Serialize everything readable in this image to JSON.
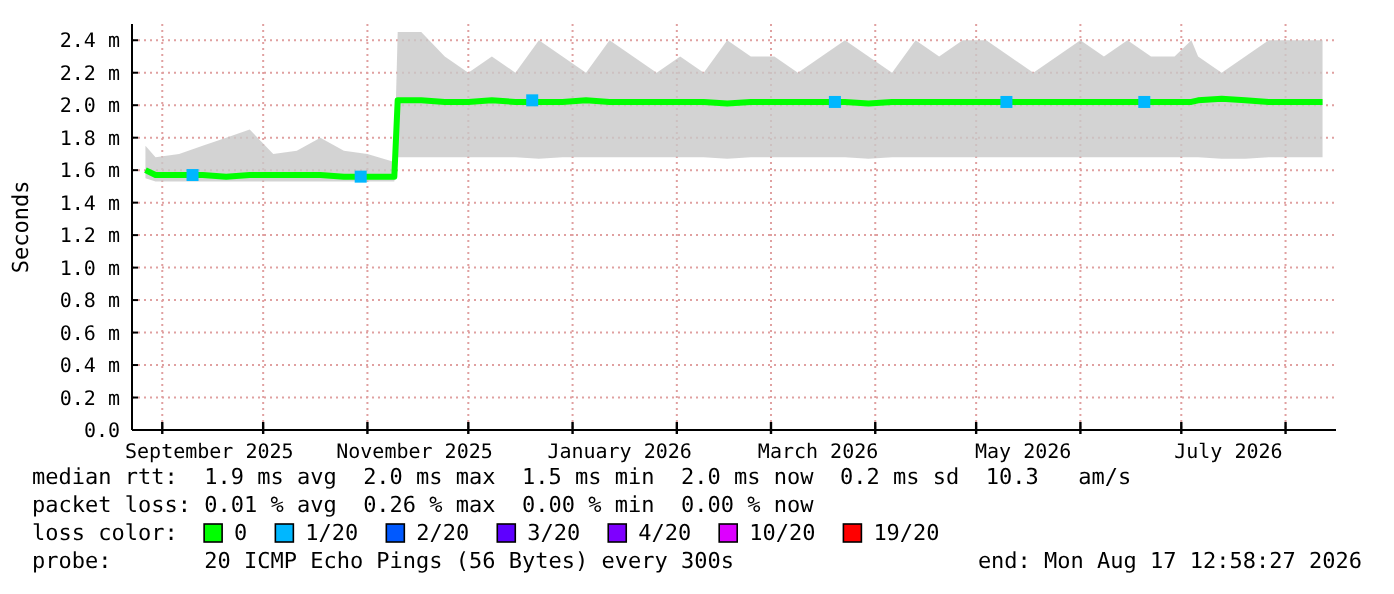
{
  "chart_data": {
    "type": "line",
    "ylabel": "Seconds",
    "legend_title": "loss color:",
    "legend": "bottom",
    "grid": true,
    "xlim": [
      "2025-08-23",
      "2026-08-16"
    ],
    "xticks": [
      {
        "value": "2025-09-01",
        "label": null
      },
      {
        "value": "2025-09-15",
        "label": "September 2025"
      },
      {
        "value": "2025-10-01",
        "label": null
      },
      {
        "value": "2025-11-01",
        "label": null
      },
      {
        "value": "2025-11-15",
        "label": "November 2025"
      },
      {
        "value": "2025-12-01",
        "label": null
      },
      {
        "value": "2026-01-01",
        "label": null
      },
      {
        "value": "2026-01-15",
        "label": "January 2026"
      },
      {
        "value": "2026-02-01",
        "label": null
      },
      {
        "value": "2026-03-01",
        "label": null
      },
      {
        "value": "2026-03-15",
        "label": "March 2026"
      },
      {
        "value": "2026-04-01",
        "label": null
      },
      {
        "value": "2026-05-01",
        "label": null
      },
      {
        "value": "2026-05-15",
        "label": "May 2026"
      },
      {
        "value": "2026-06-01",
        "label": null
      },
      {
        "value": "2026-07-01",
        "label": null
      },
      {
        "value": "2026-07-15",
        "label": "July 2026"
      },
      {
        "value": "2026-08-01",
        "label": null
      }
    ],
    "ylim": [
      0,
      2.5
    ],
    "yticks": [
      {
        "value": 0,
        "label": "0.0"
      },
      {
        "value": 0.2,
        "label": "0.2 m"
      },
      {
        "value": 0.4,
        "label": "0.4 m"
      },
      {
        "value": 0.6,
        "label": "0.6 m"
      },
      {
        "value": 0.8,
        "label": "0.8 m"
      },
      {
        "value": 1.0,
        "label": "1.0 m"
      },
      {
        "value": 1.2,
        "label": "1.2 m"
      },
      {
        "value": 1.4,
        "label": "1.4 m"
      },
      {
        "value": 1.6,
        "label": "1.6 m"
      },
      {
        "value": 1.8,
        "label": "1.8 m"
      },
      {
        "value": 2.0,
        "label": "2.0 m"
      },
      {
        "value": 2.2,
        "label": "2.2 m"
      },
      {
        "value": 2.4,
        "label": "2.4 m"
      }
    ],
    "series": [
      {
        "name": "0",
        "color": "#00ff00",
        "x": [
          "2025-08-27",
          "2025-08-30",
          "2025-09-06",
          "2025-09-13",
          "2025-09-20",
          "2025-09-27",
          "2025-10-04",
          "2025-10-11",
          "2025-10-18",
          "2025-10-25",
          "2025-11-01",
          "2025-11-09",
          "2025-11-10",
          "2025-11-17",
          "2025-11-24",
          "2025-12-01",
          "2025-12-08",
          "2025-12-15",
          "2025-12-22",
          "2025-12-29",
          "2026-01-05",
          "2026-01-12",
          "2026-01-19",
          "2026-01-26",
          "2026-02-02",
          "2026-02-09",
          "2026-02-16",
          "2026-02-23",
          "2026-03-02",
          "2026-03-09",
          "2026-03-16",
          "2026-03-23",
          "2026-03-30",
          "2026-04-06",
          "2026-04-13",
          "2026-04-20",
          "2026-04-27",
          "2026-05-04",
          "2026-05-11",
          "2026-05-18",
          "2026-05-25",
          "2026-06-01",
          "2026-06-08",
          "2026-06-15",
          "2026-06-22",
          "2026-06-29",
          "2026-07-04",
          "2026-07-06",
          "2026-07-13",
          "2026-07-20",
          "2026-07-27",
          "2026-08-03",
          "2026-08-10",
          "2026-08-12"
        ],
        "values": [
          1.6,
          1.57,
          1.57,
          1.57,
          1.56,
          1.57,
          1.57,
          1.57,
          1.57,
          1.56,
          1.56,
          1.56,
          2.03,
          2.03,
          2.02,
          2.02,
          2.03,
          2.02,
          2.02,
          2.02,
          2.03,
          2.02,
          2.02,
          2.02,
          2.02,
          2.02,
          2.01,
          2.02,
          2.02,
          2.02,
          2.02,
          2.02,
          2.01,
          2.02,
          2.02,
          2.02,
          2.02,
          2.02,
          2.02,
          2.02,
          2.02,
          2.02,
          2.02,
          2.02,
          2.02,
          2.02,
          2.02,
          2.03,
          2.04,
          2.03,
          2.02,
          2.02,
          2.02,
          2.02
        ],
        "lower": [
          1.55,
          1.53,
          1.53,
          1.53,
          1.53,
          1.53,
          1.53,
          1.53,
          1.53,
          1.53,
          1.53,
          1.53,
          1.68,
          1.68,
          1.68,
          1.68,
          1.68,
          1.68,
          1.67,
          1.68,
          1.68,
          1.68,
          1.68,
          1.68,
          1.68,
          1.68,
          1.67,
          1.68,
          1.68,
          1.68,
          1.68,
          1.68,
          1.67,
          1.68,
          1.68,
          1.68,
          1.68,
          1.68,
          1.68,
          1.68,
          1.68,
          1.68,
          1.68,
          1.68,
          1.68,
          1.68,
          1.68,
          1.68,
          1.67,
          1.67,
          1.68,
          1.68,
          1.68,
          1.68
        ],
        "upper": [
          1.75,
          1.68,
          1.7,
          1.75,
          1.8,
          1.85,
          1.7,
          1.72,
          1.8,
          1.72,
          1.7,
          1.65,
          2.45,
          2.45,
          2.3,
          2.2,
          2.3,
          2.2,
          2.4,
          2.3,
          2.2,
          2.4,
          2.3,
          2.2,
          2.3,
          2.2,
          2.4,
          2.3,
          2.3,
          2.2,
          2.3,
          2.4,
          2.3,
          2.2,
          2.4,
          2.3,
          2.4,
          2.4,
          2.3,
          2.2,
          2.3,
          2.4,
          2.3,
          2.4,
          2.3,
          2.3,
          2.4,
          2.3,
          2.2,
          2.3,
          2.4,
          2.4,
          2.4,
          2.4
        ]
      },
      {
        "name": "1/20",
        "color": "#00b7ff",
        "type": "scatter",
        "marker": "square",
        "x": [
          "2025-09-10",
          "2025-10-30",
          "2025-12-20",
          "2026-03-20",
          "2026-05-10",
          "2026-06-20"
        ],
        "values": [
          1.57,
          1.56,
          2.03,
          2.02,
          2.02,
          2.02
        ]
      },
      {
        "name": "2/20",
        "color": "#0059ff",
        "type": "scatter",
        "marker": "square"
      },
      {
        "name": "3/20",
        "color": "#5e00ff",
        "type": "scatter",
        "marker": "square"
      },
      {
        "name": "4/20",
        "color": "#7e00ff",
        "type": "scatter",
        "marker": "square"
      },
      {
        "name": "10/20",
        "color": "#dd00ff",
        "type": "scatter",
        "marker": "square"
      },
      {
        "name": "19/20",
        "color": "#ff0000",
        "type": "scatter",
        "marker": "square"
      }
    ],
    "annotations": [
      "median rtt:  1.9 ms avg  2.0 ms max  1.5 ms min  2.0 ms now  0.2 ms sd  10.3   am/s",
      "packet loss: 0.01 % avg  0.26 % max  0.00 % min  0.00 % now",
      "probe:       20 ICMP Echo Pings (56 Bytes) every 300s",
      "end: Mon Aug 17 12:58:27 2026"
    ]
  }
}
